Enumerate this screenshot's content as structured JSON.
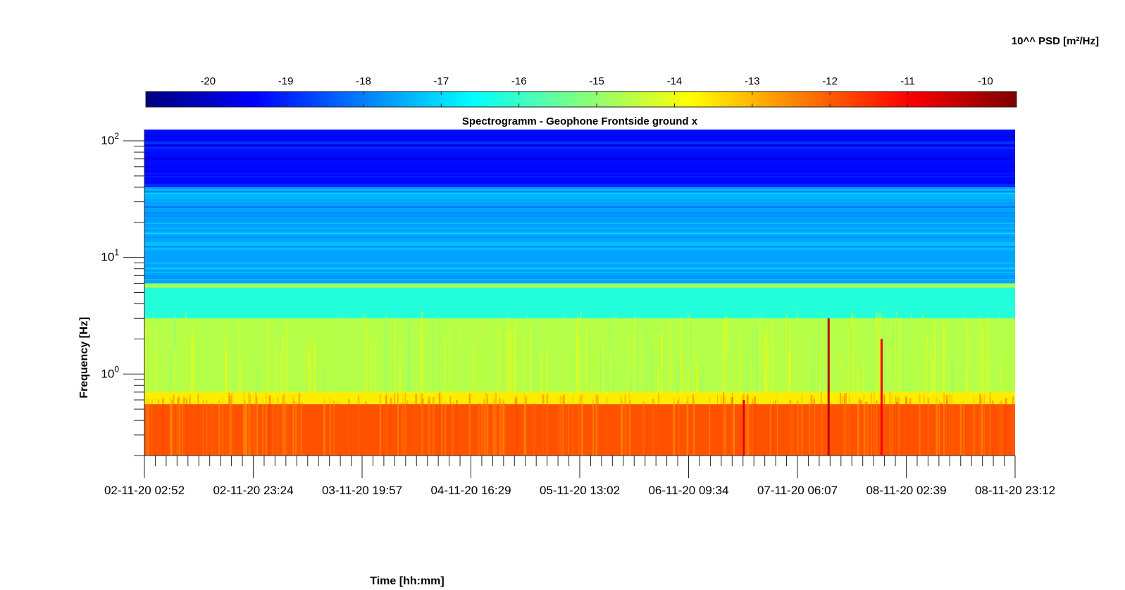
{
  "chart_data": {
    "type": "heatmap",
    "title": "Spectrogramm - Geophone Frontside ground x",
    "xlabel": "Time [hh:mm]",
    "ylabel": "Frequency [Hz]",
    "colorbar_label": "10^^ PSD [m²/Hz]",
    "colormap": "jet",
    "y_scale": "log",
    "ylim": [
      0.2,
      125
    ],
    "y_ticks": [
      {
        "value": 1,
        "base": "10",
        "exponent": "0"
      },
      {
        "value": 10,
        "base": "10",
        "exponent": "1"
      },
      {
        "value": 100,
        "base": "10",
        "exponent": "2"
      }
    ],
    "x_tick_labels": [
      "02-11-20 02:52",
      "02-11-20 23:24",
      "03-11-20 19:57",
      "04-11-20 16:29",
      "05-11-20 13:02",
      "06-11-20 09:34",
      "07-11-20 06:07",
      "08-11-20 02:39",
      "08-11-20 23:12"
    ],
    "color_limits": [
      -20.8,
      -9.6
    ],
    "colorbar_ticks": [
      "-20",
      "-19",
      "-18",
      "-17",
      "-16",
      "-15",
      "-14",
      "-13",
      "-12",
      "-11",
      "-10"
    ],
    "colorbar_tick_values": [
      -20,
      -19,
      -18,
      -17,
      -16,
      -15,
      -14,
      -13,
      -12,
      -11,
      -10
    ],
    "bands": [
      {
        "f_min": 0.2,
        "f_max": 0.55,
        "log_psd": -11.9
      },
      {
        "f_min": 0.55,
        "f_max": 0.7,
        "log_psd": -13.6
      },
      {
        "f_min": 0.7,
        "f_max": 3.0,
        "log_psd": -14.6
      },
      {
        "f_min": 3.0,
        "f_max": 5.5,
        "log_psd": -16.2
      },
      {
        "f_min": 5.5,
        "f_max": 6.0,
        "log_psd": -14.8
      },
      {
        "f_min": 6.0,
        "f_max": 40,
        "log_psd": -17.6
      },
      {
        "f_min": 40,
        "f_max": 125,
        "log_psd": -19.3
      }
    ],
    "transients": [
      {
        "time": "06-11-20 20:00",
        "f_max": 0.6,
        "log_psd": -10.7
      },
      {
        "time": "07-11-20 12:00",
        "f_max": 3.0,
        "log_psd": -10.3
      },
      {
        "time": "07-11-20 22:00",
        "f_max": 2.0,
        "log_psd": -11.0
      }
    ]
  }
}
